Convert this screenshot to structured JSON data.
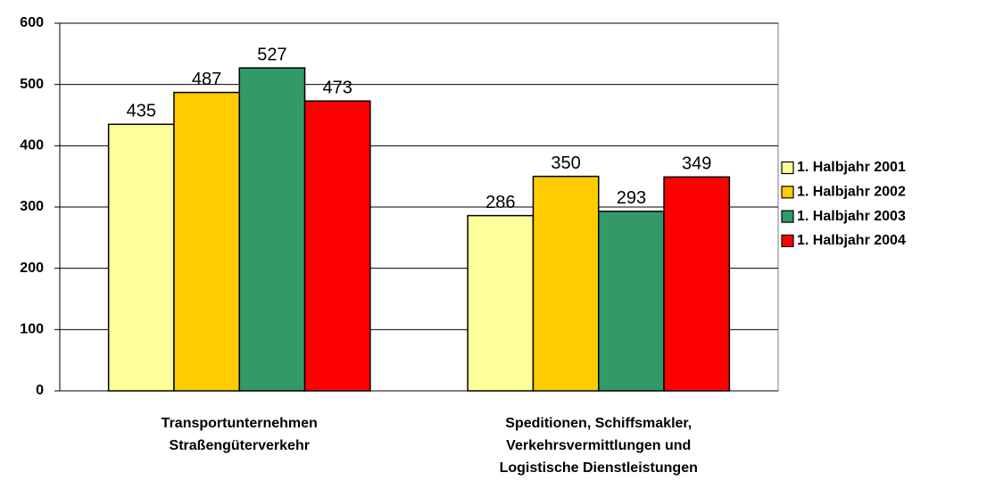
{
  "chart_data": {
    "type": "bar",
    "categories": [
      [
        "Transportunternehmen",
        "Straßengüterverkehr"
      ],
      [
        "Speditionen, Schiffsmakler,",
        "Verkehrsvermittlungen und",
        "Logistische Dienstleistungen"
      ]
    ],
    "series": [
      {
        "name": "1. Halbjahr 2001",
        "color": "#ffff99",
        "values": [
          435,
          286
        ]
      },
      {
        "name": "1. Halbjahr 2002",
        "color": "#ffcc00",
        "values": [
          487,
          350
        ]
      },
      {
        "name": "1. Halbjahr 2003",
        "color": "#339966",
        "values": [
          527,
          293
        ]
      },
      {
        "name": "1. Halbjahr 2004",
        "color": "#ff0000",
        "values": [
          473,
          349
        ]
      }
    ],
    "ylim": [
      0,
      600
    ],
    "yticks": [
      0,
      100,
      200,
      300,
      400,
      500,
      600
    ],
    "grid": true,
    "legend": "right"
  }
}
